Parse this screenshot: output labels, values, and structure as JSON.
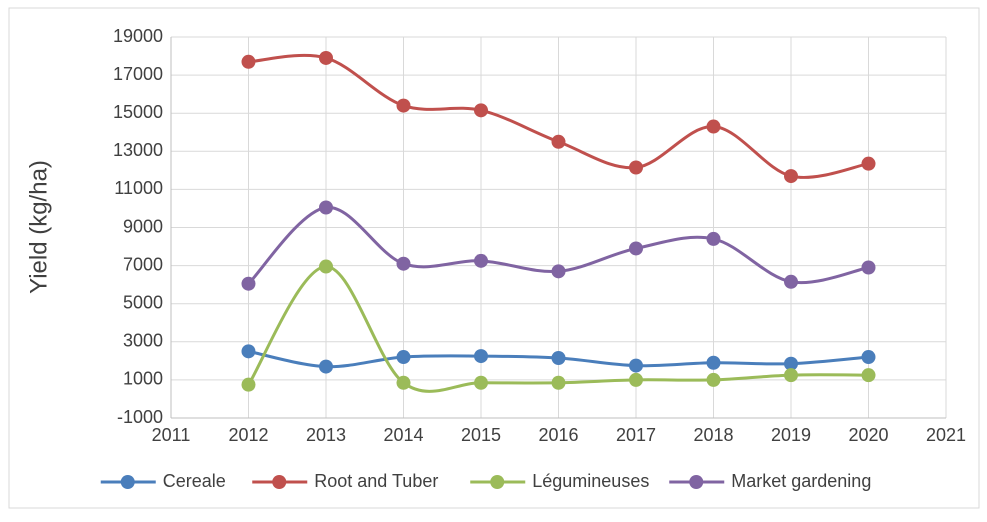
{
  "chart_data": {
    "type": "line",
    "y_label": "Yield (kg/ha)",
    "x": [
      2012,
      2013,
      2014,
      2015,
      2016,
      2017,
      2018,
      2019,
      2020
    ],
    "series": [
      {
        "name": "Cereale",
        "color": "#4a7ebb",
        "values": [
          2500,
          1700,
          2200,
          2250,
          2150,
          1750,
          1900,
          1850,
          2200
        ]
      },
      {
        "name": "Root and Tuber",
        "color": "#c0504d",
        "values": [
          17700,
          17900,
          15400,
          15150,
          13500,
          12150,
          14300,
          11700,
          12350
        ]
      },
      {
        "name": "Légumineuses",
        "color": "#9bbb59",
        "values": [
          750,
          6950,
          850,
          850,
          850,
          1000,
          1000,
          1250,
          1250
        ]
      },
      {
        "name": "Market gardening",
        "color": "#8064a2",
        "values": [
          6050,
          10050,
          7100,
          7250,
          6700,
          7900,
          8400,
          6150,
          6900
        ]
      }
    ],
    "xlim": [
      2011,
      2021
    ],
    "xticks": [
      2011,
      2012,
      2013,
      2014,
      2015,
      2016,
      2017,
      2018,
      2019,
      2020,
      2021
    ],
    "ylim": [
      -1000,
      19000
    ],
    "yticks": [
      -1000,
      1000,
      3000,
      5000,
      7000,
      9000,
      11000,
      13000,
      15000,
      17000,
      19000
    ],
    "grid": true,
    "smooth": true,
    "legend": "bottom"
  }
}
